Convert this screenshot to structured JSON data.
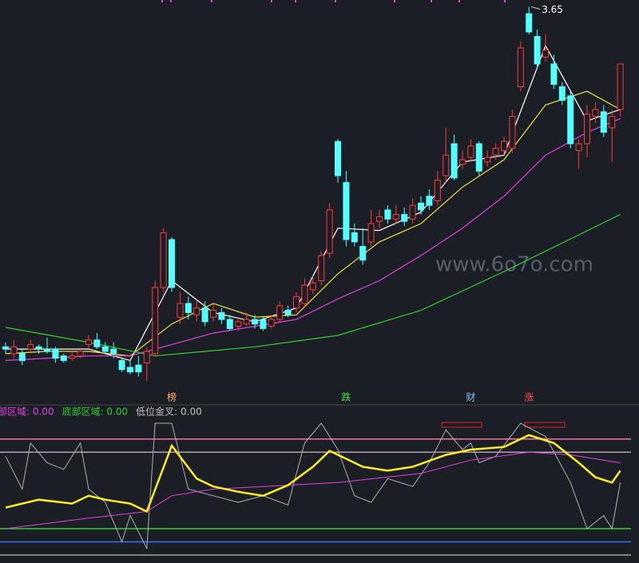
{
  "chart_data": [
    {
      "type": "candlestick",
      "open": [
        2.16,
        2.13,
        2.13,
        2.15,
        2.16,
        2.15,
        2.15,
        2.12,
        2.11,
        2.12,
        2.17,
        2.19,
        2.16,
        2.15,
        2.1,
        2.07,
        2.08,
        2.09,
        2.13,
        2.42,
        2.63,
        2.29,
        2.35,
        2.3,
        2.33,
        2.29,
        2.31,
        2.28,
        2.25,
        2.26,
        2.28,
        2.28,
        2.25,
        2.28,
        2.32,
        2.33,
        2.35,
        2.41,
        2.45,
        2.57,
        3.06,
        2.88,
        2.66,
        2.6,
        2.62,
        2.71,
        2.76,
        2.72,
        2.74,
        2.72,
        2.79,
        2.82,
        2.8,
        2.91,
        3.05,
        2.96,
        2.99,
        3.05,
        2.97,
        3.0,
        3.02,
        3.03,
        3.3,
        3.62,
        3.52,
        3.43,
        3.4,
        3.3,
        3.26,
        3.02,
        3.05,
        3.17,
        3.19,
        3.12,
        3.2
      ],
      "high": [
        2.18,
        2.19,
        2.15,
        2.19,
        2.17,
        2.2,
        2.16,
        2.13,
        2.14,
        2.15,
        2.21,
        2.22,
        2.18,
        2.18,
        2.11,
        2.1,
        2.12,
        2.16,
        2.45,
        2.68,
        2.64,
        2.4,
        2.38,
        2.37,
        2.36,
        2.35,
        2.33,
        2.3,
        2.29,
        2.31,
        2.3,
        2.29,
        2.3,
        2.36,
        2.34,
        2.4,
        2.46,
        2.47,
        2.58,
        2.79,
        3.07,
        2.93,
        2.7,
        2.68,
        2.76,
        2.76,
        2.78,
        2.78,
        2.77,
        2.81,
        2.82,
        2.85,
        2.93,
        3.12,
        3.09,
        3.02,
        3.07,
        3.06,
        3.02,
        3.05,
        3.08,
        3.2,
        3.5,
        3.65,
        3.55,
        3.53,
        3.44,
        3.32,
        3.28,
        3.07,
        3.22,
        3.23,
        3.22,
        3.2,
        3.4
      ],
      "low": [
        2.13,
        2.11,
        2.08,
        2.14,
        2.13,
        2.13,
        2.09,
        2.09,
        2.1,
        2.11,
        2.15,
        2.15,
        2.13,
        2.11,
        2.05,
        2.04,
        2.03,
        2.01,
        2.12,
        2.4,
        2.4,
        2.26,
        2.28,
        2.27,
        2.25,
        2.27,
        2.26,
        2.23,
        2.23,
        2.25,
        2.24,
        2.23,
        2.24,
        2.27,
        2.29,
        2.31,
        2.33,
        2.39,
        2.43,
        2.55,
        2.88,
        2.6,
        2.6,
        2.52,
        2.6,
        2.68,
        2.7,
        2.7,
        2.69,
        2.7,
        2.74,
        2.76,
        2.78,
        2.88,
        2.89,
        2.94,
        2.97,
        2.91,
        2.95,
        2.98,
        3.0,
        3.01,
        3.28,
        3.53,
        3.38,
        3.41,
        3.29,
        3.22,
        3.03,
        2.94,
        2.99,
        3.14,
        3.08,
        2.97,
        3.17
      ],
      "close": [
        2.15,
        2.16,
        2.1,
        2.17,
        2.15,
        2.14,
        2.11,
        2.1,
        2.12,
        2.14,
        2.19,
        2.16,
        2.14,
        2.13,
        2.06,
        2.05,
        2.05,
        2.14,
        2.42,
        2.66,
        2.42,
        2.35,
        2.31,
        2.33,
        2.27,
        2.32,
        2.28,
        2.24,
        2.27,
        2.28,
        2.26,
        2.24,
        2.28,
        2.34,
        2.3,
        2.38,
        2.43,
        2.44,
        2.56,
        2.76,
        2.91,
        2.63,
        2.62,
        2.54,
        2.7,
        2.73,
        2.72,
        2.74,
        2.71,
        2.78,
        2.76,
        2.78,
        2.89,
        3.0,
        2.9,
        2.98,
        3.04,
        2.93,
        2.99,
        3.03,
        3.06,
        3.17,
        3.47,
        3.54,
        3.4,
        3.46,
        3.31,
        3.24,
        3.05,
        3.05,
        3.18,
        3.2,
        3.1,
        3.17,
        3.4
      ],
      "up_color": "#ff3b3b",
      "down_color": "#54ffff",
      "ylim": [
        2.0,
        3.68
      ],
      "high_label_index": 63,
      "series": [
        {
          "color": "#ffffff",
          "x": [
            0,
            5,
            10,
            15,
            20,
            25,
            30,
            35,
            40,
            45,
            50,
            55,
            60,
            65,
            70,
            74
          ],
          "values": [
            2.15,
            2.15,
            2.15,
            2.1,
            2.45,
            2.31,
            2.27,
            2.33,
            2.68,
            2.67,
            2.75,
            2.97,
            3.0,
            3.48,
            3.15,
            3.2
          ]
        },
        {
          "color": "#f0e040",
          "x": [
            0,
            5,
            10,
            15,
            20,
            25,
            30,
            35,
            40,
            45,
            50,
            55,
            60,
            65,
            70,
            74
          ],
          "values": [
            2.13,
            2.14,
            2.14,
            2.12,
            2.26,
            2.35,
            2.29,
            2.3,
            2.48,
            2.62,
            2.7,
            2.86,
            2.98,
            3.22,
            3.28,
            3.2
          ]
        },
        {
          "color": "#e040e0",
          "x": [
            0,
            5,
            10,
            15,
            20,
            25,
            30,
            35,
            40,
            45,
            50,
            55,
            60,
            65,
            70,
            74
          ],
          "values": [
            2.1,
            2.11,
            2.12,
            2.12,
            2.17,
            2.22,
            2.25,
            2.28,
            2.37,
            2.45,
            2.56,
            2.68,
            2.82,
            3.0,
            3.1,
            3.16
          ]
        },
        {
          "color": "#30d030",
          "x": [
            0,
            10,
            18,
            30,
            40,
            50,
            60,
            74
          ],
          "values": [
            2.245,
            2.18,
            2.12,
            2.16,
            2.21,
            2.32,
            2.49,
            2.74
          ]
        }
      ],
      "signals": [
        {
          "label": "榜",
          "index": 20,
          "color": "#ffb060"
        },
        {
          "label": "跌",
          "index": 41,
          "color": "#40e040"
        },
        {
          "label": "财",
          "index": 56,
          "color": "#80c0ff"
        },
        {
          "label": "涨",
          "index": 63,
          "color": "#ff5050"
        }
      ],
      "watermark": "www.6o7o.com"
    },
    {
      "type": "line",
      "labels": [
        {
          "text": "部区域: 0.00",
          "color": "#e040e0"
        },
        {
          "text": "底部区域: 0.00",
          "color": "#30d030"
        },
        {
          "text": "低位金叉: 0.00",
          "color": "#c0c0c0"
        }
      ],
      "ylim": [
        0,
        100
      ],
      "levels": [
        {
          "value": 88,
          "color": "#ff6aa8"
        },
        {
          "value": 78,
          "color": "#b0a0b0"
        },
        {
          "value": 20,
          "color": "#30d030"
        },
        {
          "value": 10,
          "color": "#3070ff"
        },
        {
          "value": 0,
          "color": "#a0a0a0"
        }
      ],
      "series": [
        {
          "color": "#b0b0b0",
          "width": 1,
          "x": [
            0,
            2,
            3,
            5,
            7,
            9,
            10,
            12,
            14,
            15,
            17,
            18,
            20,
            22,
            25,
            28,
            31,
            34,
            36,
            38,
            40,
            42,
            44,
            46,
            49,
            51,
            53,
            55,
            56,
            57,
            59,
            62,
            65,
            68,
            70,
            72,
            73,
            74
          ],
          "values": [
            75,
            50,
            85,
            70,
            65,
            85,
            50,
            40,
            10,
            30,
            5,
            100,
            100,
            50,
            45,
            40,
            45,
            38,
            85,
            100,
            80,
            45,
            40,
            58,
            52,
            70,
            95,
            80,
            85,
            70,
            75,
            100,
            90,
            55,
            20,
            30,
            20,
            55
          ]
        },
        {
          "color": "#e040e0",
          "width": 1,
          "x": [
            0,
            10,
            17,
            20,
            25,
            31,
            40,
            50,
            56,
            63,
            68,
            74
          ],
          "values": [
            20,
            28,
            33,
            45,
            50,
            52,
            55,
            62,
            72,
            78,
            76,
            70
          ]
        },
        {
          "color": "#ffee22",
          "width": 2.5,
          "x": [
            0,
            4,
            8,
            10,
            12,
            15,
            17,
            20,
            23,
            25,
            28,
            31,
            34,
            37,
            39,
            41,
            43,
            46,
            49,
            53,
            56,
            60,
            63,
            66,
            69,
            71,
            73,
            74
          ],
          "values": [
            36,
            42,
            39,
            45,
            42,
            39,
            33,
            83,
            58,
            52,
            48,
            45,
            53,
            67,
            79,
            73,
            67,
            64,
            67,
            76,
            80,
            82,
            91,
            85,
            70,
            59,
            55,
            64
          ]
        }
      ]
    }
  ]
}
